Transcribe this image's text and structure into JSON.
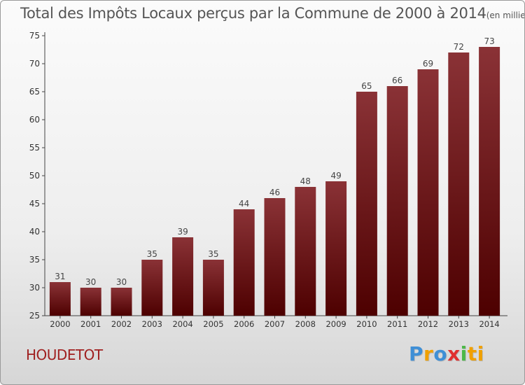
{
  "header": {
    "title": "Total des Impôts Locaux perçus par la Commune de 2000 à 2014",
    "unit": "(en milliers d'€)"
  },
  "footer": {
    "commune": "HOUDETOT",
    "logo": [
      "P",
      "r",
      "o",
      "x",
      "i",
      "ti"
    ]
  },
  "colors": {
    "bar_top": "#8a3236",
    "bar_bottom": "#4d0000",
    "commune_text": "#a02020"
  },
  "chart_data": {
    "type": "bar",
    "title": "Total des Impôts Locaux perçus par la Commune de 2000 à 2014",
    "ylabel": "(en milliers d'€)",
    "xlabel": "",
    "categories": [
      "2000",
      "2001",
      "2002",
      "2003",
      "2004",
      "2005",
      "2006",
      "2007",
      "2008",
      "2009",
      "2010",
      "2011",
      "2012",
      "2013",
      "2014"
    ],
    "values": [
      31,
      30,
      30,
      35,
      39,
      35,
      44,
      46,
      48,
      49,
      65,
      66,
      69,
      72,
      73
    ],
    "ylim": [
      25,
      75
    ],
    "yticks": [
      25,
      30,
      35,
      40,
      45,
      50,
      55,
      60,
      65,
      70,
      75
    ],
    "grid": false,
    "data_labels": true
  }
}
